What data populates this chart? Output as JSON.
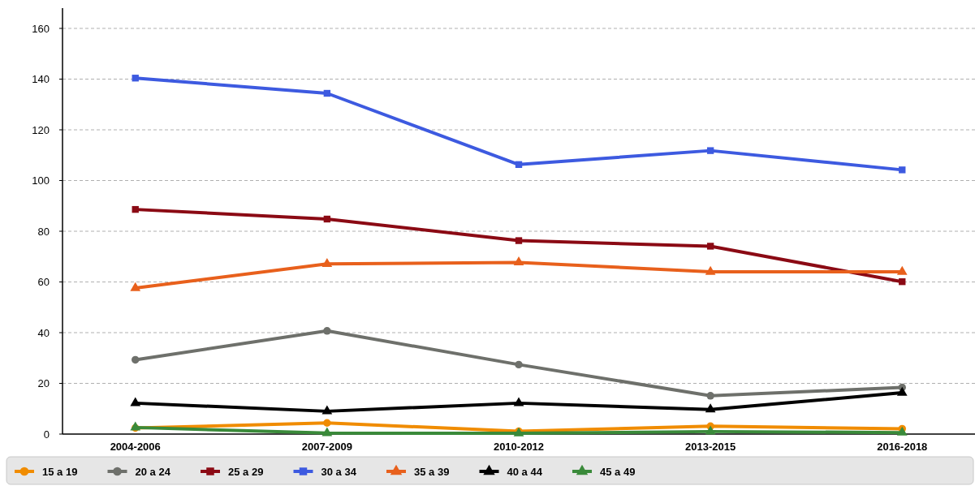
{
  "chart_data": {
    "type": "line",
    "categories": [
      "2004-2006",
      "2007-2009",
      "2010-2012",
      "2013-2015",
      "2016-2018"
    ],
    "series": [
      {
        "name": "15 a 19",
        "color": "#f08c00",
        "marker": "circle",
        "values": [
          2.4,
          4.4,
          1.1,
          3.1,
          2.1
        ]
      },
      {
        "name": "20 a 24",
        "color": "#6e706b",
        "marker": "circle",
        "values": [
          29.3,
          40.7,
          27.4,
          15.1,
          18.4
        ]
      },
      {
        "name": "25 a 29",
        "color": "#8b0a14",
        "marker": "square",
        "values": [
          88.6,
          84.8,
          76.3,
          74.1,
          60.1
        ]
      },
      {
        "name": "30 a 34",
        "color": "#3d5ae0",
        "marker": "square",
        "values": [
          140.4,
          134.4,
          106.3,
          111.8,
          104.2
        ]
      },
      {
        "name": "35 a 39",
        "color": "#e8601c",
        "marker": "triangle",
        "values": [
          57.6,
          67.1,
          67.7,
          64.0,
          64.0
        ]
      },
      {
        "name": "40 a 44",
        "color": "#000000",
        "marker": "triangle",
        "values": [
          12.2,
          9.0,
          12.2,
          9.7,
          16.3
        ]
      },
      {
        "name": "45 a 49",
        "color": "#3a8a3a",
        "marker": "triangle",
        "values": [
          2.6,
          0.4,
          0.3,
          1.0,
          0.6
        ]
      }
    ],
    "ylim": [
      0,
      168
    ],
    "yticks": [
      0,
      20,
      40,
      60,
      80,
      100,
      120,
      140,
      160
    ],
    "grid": "y",
    "legend": "bottom",
    "line_style": "solid"
  }
}
